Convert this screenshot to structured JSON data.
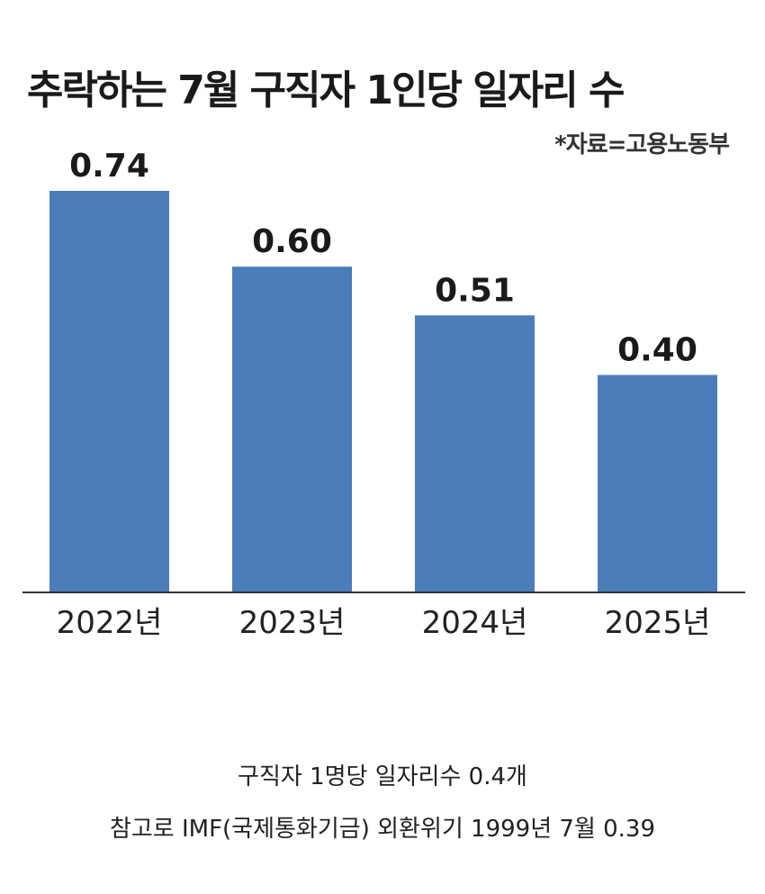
{
  "chart_data": {
    "type": "bar",
    "title": "추락하는 7월 구직자 1인당 일자리 수",
    "source": "*자료=고용노동부",
    "categories": [
      "2022년",
      "2023년",
      "2024년",
      "2025년"
    ],
    "values": [
      0.74,
      0.6,
      0.51,
      0.4
    ],
    "value_labels": [
      "0.74",
      "0.60",
      "0.51",
      "0.40"
    ],
    "ylim": [
      0,
      0.74
    ],
    "grid": false,
    "bar_color": "#4a7dba"
  },
  "captions": {
    "line1": "구직자 1명당 일자리수 0.4개",
    "line2": "참고로 IMF(국제통화기금) 외환위기 1999년 7월 0.39"
  }
}
